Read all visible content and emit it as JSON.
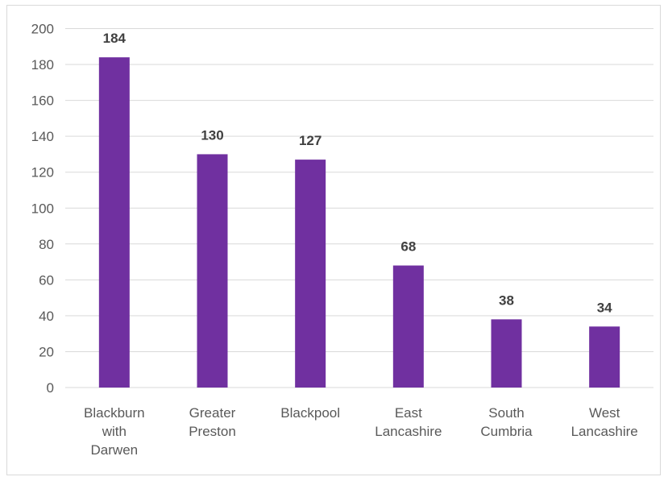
{
  "chart_data": {
    "type": "bar",
    "categories": [
      [
        "Blackburn",
        "with",
        "Darwen"
      ],
      [
        "Greater",
        "Preston"
      ],
      [
        "Blackpool"
      ],
      [
        "East",
        "Lancashire"
      ],
      [
        "South",
        "Cumbria"
      ],
      [
        "West",
        "Lancashire"
      ]
    ],
    "values": [
      184,
      130,
      127,
      68,
      38,
      34
    ],
    "data_labels": [
      "184",
      "130",
      "127",
      "68",
      "38",
      "34"
    ],
    "ylim": [
      0,
      200
    ],
    "y_ticks": [
      0,
      20,
      40,
      60,
      80,
      100,
      120,
      140,
      160,
      180,
      200
    ],
    "title": "",
    "xlabel": "",
    "ylabel": "",
    "grid": true,
    "legend": "none",
    "colors": {
      "bar": "#7030a0",
      "grid": "#d9d9d9",
      "axis_text": "#595959",
      "data_label": "#404040"
    }
  }
}
